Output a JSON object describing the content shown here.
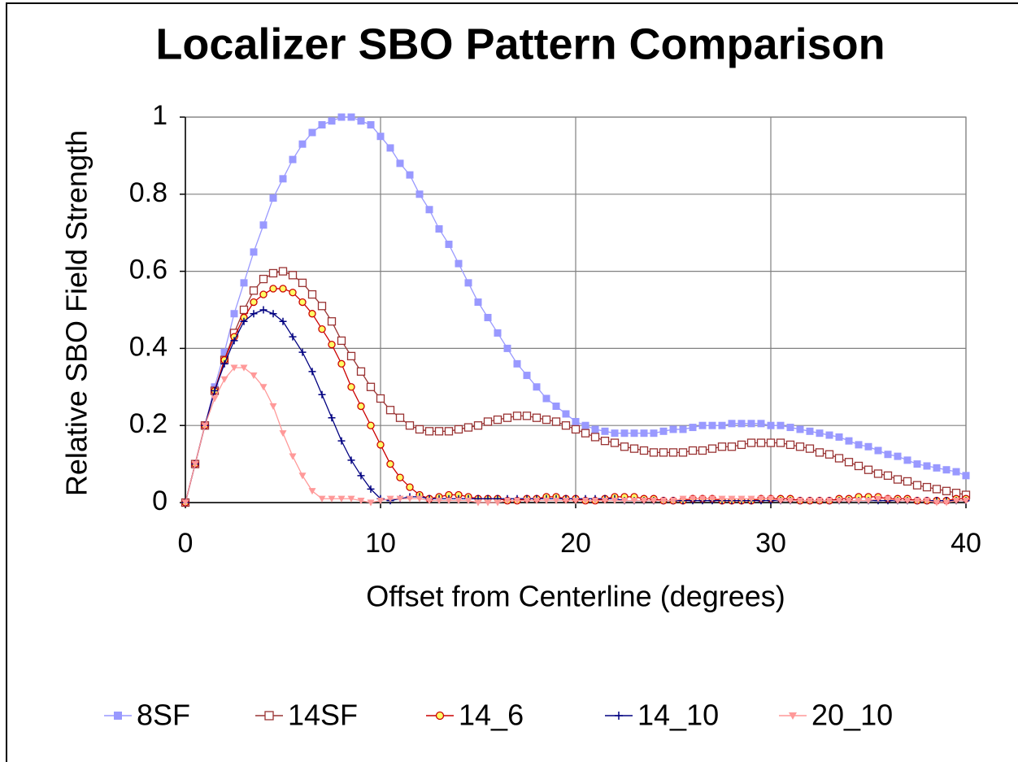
{
  "chart_data": {
    "type": "line",
    "title": "Localizer SBO Pattern Comparison",
    "x_label": "Offset from Centerline (degrees)",
    "y_label": "Relative SBO Field Strength",
    "x": [
      0,
      0.5,
      1,
      1.5,
      2,
      2.5,
      3,
      3.5,
      4,
      4.5,
      5,
      5.5,
      6,
      6.5,
      7,
      7.5,
      8,
      8.5,
      9,
      9.5,
      10,
      10.5,
      11,
      11.5,
      12,
      12.5,
      13,
      13.5,
      14,
      14.5,
      15,
      15.5,
      16,
      16.5,
      17,
      17.5,
      18,
      18.5,
      19,
      19.5,
      20,
      20.5,
      21,
      21.5,
      22,
      22.5,
      23,
      23.5,
      24,
      24.5,
      25,
      25.5,
      26,
      26.5,
      27,
      27.5,
      28,
      28.5,
      29,
      29.5,
      30,
      30.5,
      31,
      31.5,
      32,
      32.5,
      33,
      33.5,
      34,
      34.5,
      35,
      35.5,
      36,
      36.5,
      37,
      37.5,
      38,
      38.5,
      39,
      39.5,
      40
    ],
    "series": [
      {
        "name": "8SF",
        "color": "#9999ff",
        "marker": "square",
        "values": [
          0,
          0.1,
          0.2,
          0.3,
          0.39,
          0.49,
          0.57,
          0.65,
          0.72,
          0.79,
          0.84,
          0.89,
          0.93,
          0.96,
          0.98,
          0.99,
          1,
          1,
          0.99,
          0.98,
          0.95,
          0.92,
          0.88,
          0.85,
          0.8,
          0.76,
          0.71,
          0.67,
          0.62,
          0.57,
          0.52,
          0.48,
          0.44,
          0.4,
          0.36,
          0.33,
          0.3,
          0.27,
          0.25,
          0.23,
          0.21,
          0.2,
          0.19,
          0.185,
          0.18,
          0.18,
          0.18,
          0.18,
          0.18,
          0.185,
          0.19,
          0.19,
          0.195,
          0.2,
          0.2,
          0.2,
          0.205,
          0.205,
          0.205,
          0.205,
          0.2,
          0.2,
          0.195,
          0.19,
          0.185,
          0.18,
          0.175,
          0.17,
          0.16,
          0.15,
          0.145,
          0.135,
          0.125,
          0.12,
          0.11,
          0.1,
          0.095,
          0.09,
          0.085,
          0.08,
          0.07
        ]
      },
      {
        "name": "14SF",
        "color": "#993333",
        "marker": "square-open",
        "values": [
          0,
          0.1,
          0.2,
          0.29,
          0.37,
          0.44,
          0.5,
          0.55,
          0.58,
          0.595,
          0.6,
          0.59,
          0.57,
          0.54,
          0.51,
          0.47,
          0.42,
          0.38,
          0.34,
          0.3,
          0.27,
          0.24,
          0.22,
          0.2,
          0.19,
          0.185,
          0.185,
          0.185,
          0.19,
          0.195,
          0.2,
          0.21,
          0.215,
          0.22,
          0.225,
          0.225,
          0.22,
          0.215,
          0.21,
          0.2,
          0.19,
          0.18,
          0.17,
          0.16,
          0.155,
          0.145,
          0.14,
          0.135,
          0.13,
          0.13,
          0.13,
          0.13,
          0.135,
          0.135,
          0.14,
          0.145,
          0.145,
          0.15,
          0.155,
          0.155,
          0.155,
          0.155,
          0.15,
          0.145,
          0.14,
          0.13,
          0.125,
          0.115,
          0.105,
          0.095,
          0.085,
          0.075,
          0.07,
          0.06,
          0.055,
          0.045,
          0.04,
          0.035,
          0.03,
          0.025,
          0.02
        ]
      },
      {
        "name": "14_6",
        "color": "#cc0000",
        "marker": "circle",
        "marker_fill": "#ffff66",
        "values": [
          0,
          0.1,
          0.2,
          0.29,
          0.37,
          0.43,
          0.48,
          0.52,
          0.54,
          0.555,
          0.555,
          0.545,
          0.52,
          0.49,
          0.45,
          0.41,
          0.36,
          0.3,
          0.25,
          0.2,
          0.15,
          0.1,
          0.065,
          0.04,
          0.02,
          0.01,
          0.015,
          0.02,
          0.02,
          0.015,
          0.01,
          0.01,
          0.01,
          0.005,
          0.005,
          0.01,
          0.01,
          0.015,
          0.015,
          0.01,
          0.01,
          0.005,
          0.005,
          0.01,
          0.015,
          0.015,
          0.015,
          0.01,
          0.01,
          0.005,
          0.005,
          0.005,
          0.01,
          0.01,
          0.01,
          0.005,
          0.005,
          0.005,
          0.005,
          0.01,
          0.01,
          0.01,
          0.01,
          0.005,
          0.005,
          0.005,
          0.005,
          0.01,
          0.01,
          0.015,
          0.015,
          0.015,
          0.01,
          0.01,
          0.01,
          0.005,
          0.005,
          0.005,
          0.005,
          0.01,
          0.01
        ]
      },
      {
        "name": "14_10",
        "color": "#000080",
        "marker": "plus",
        "values": [
          0,
          0.1,
          0.2,
          0.29,
          0.36,
          0.42,
          0.47,
          0.49,
          0.5,
          0.49,
          0.47,
          0.43,
          0.39,
          0.34,
          0.28,
          0.22,
          0.16,
          0.11,
          0.07,
          0.035,
          0.01,
          0.005,
          0.01,
          0.015,
          0.015,
          0.01,
          0.01,
          0.01,
          0.01,
          0.01,
          0.01,
          0.01,
          0.01,
          0.01,
          0.01,
          0.01,
          0.01,
          0.01,
          0.01,
          0.01,
          0.01,
          0.01,
          0.01,
          0.01,
          0.01,
          0.005,
          0.005,
          0.005,
          0.005,
          0.005,
          0.005,
          0.005,
          0.005,
          0.005,
          0.005,
          0.005,
          0.005,
          0.005,
          0.005,
          0.005,
          0.005,
          0.005,
          0.005,
          0.005,
          0.005,
          0.005,
          0.005,
          0.005,
          0.005,
          0.005,
          0.005,
          0.005,
          0.005,
          0.005,
          0.005,
          0.005,
          0.005,
          0.005,
          0.005,
          0.005,
          0.005
        ]
      },
      {
        "name": "20_10",
        "color": "#ff9999",
        "marker": "triangle-down",
        "values": [
          0,
          0.1,
          0.2,
          0.27,
          0.32,
          0.35,
          0.35,
          0.33,
          0.3,
          0.25,
          0.18,
          0.12,
          0.07,
          0.03,
          0.01,
          0.01,
          0.01,
          0.01,
          0.005,
          0,
          0.005,
          0.01,
          0.01,
          0.01,
          0.01,
          0.005,
          0.005,
          0.005,
          0.005,
          0.005,
          0,
          0,
          0,
          0.005,
          0.005,
          0.005,
          0.005,
          0.005,
          0.005,
          0.005,
          0.005,
          0.005,
          0.005,
          0.005,
          0.005,
          0.005,
          0.005,
          0.005,
          0.005,
          0.005,
          0.005,
          0.01,
          0.01,
          0.01,
          0.01,
          0.01,
          0.01,
          0.01,
          0.01,
          0.01,
          0.01,
          0.005,
          0.005,
          0.005,
          0.005,
          0.005,
          0.005,
          0.005,
          0.005,
          0.005,
          0.005,
          0.01,
          0.01,
          0.005,
          0.005,
          0.005,
          0.005,
          0,
          0,
          0.005,
          0.005
        ]
      }
    ],
    "xlim": [
      0,
      40
    ],
    "xticks": [
      0,
      10,
      20,
      30,
      40
    ],
    "ylim": [
      0,
      1
    ],
    "yticks": [
      0,
      0.2,
      0.4,
      0.6,
      0.8,
      1
    ],
    "grid": true,
    "legend": "bottom"
  }
}
